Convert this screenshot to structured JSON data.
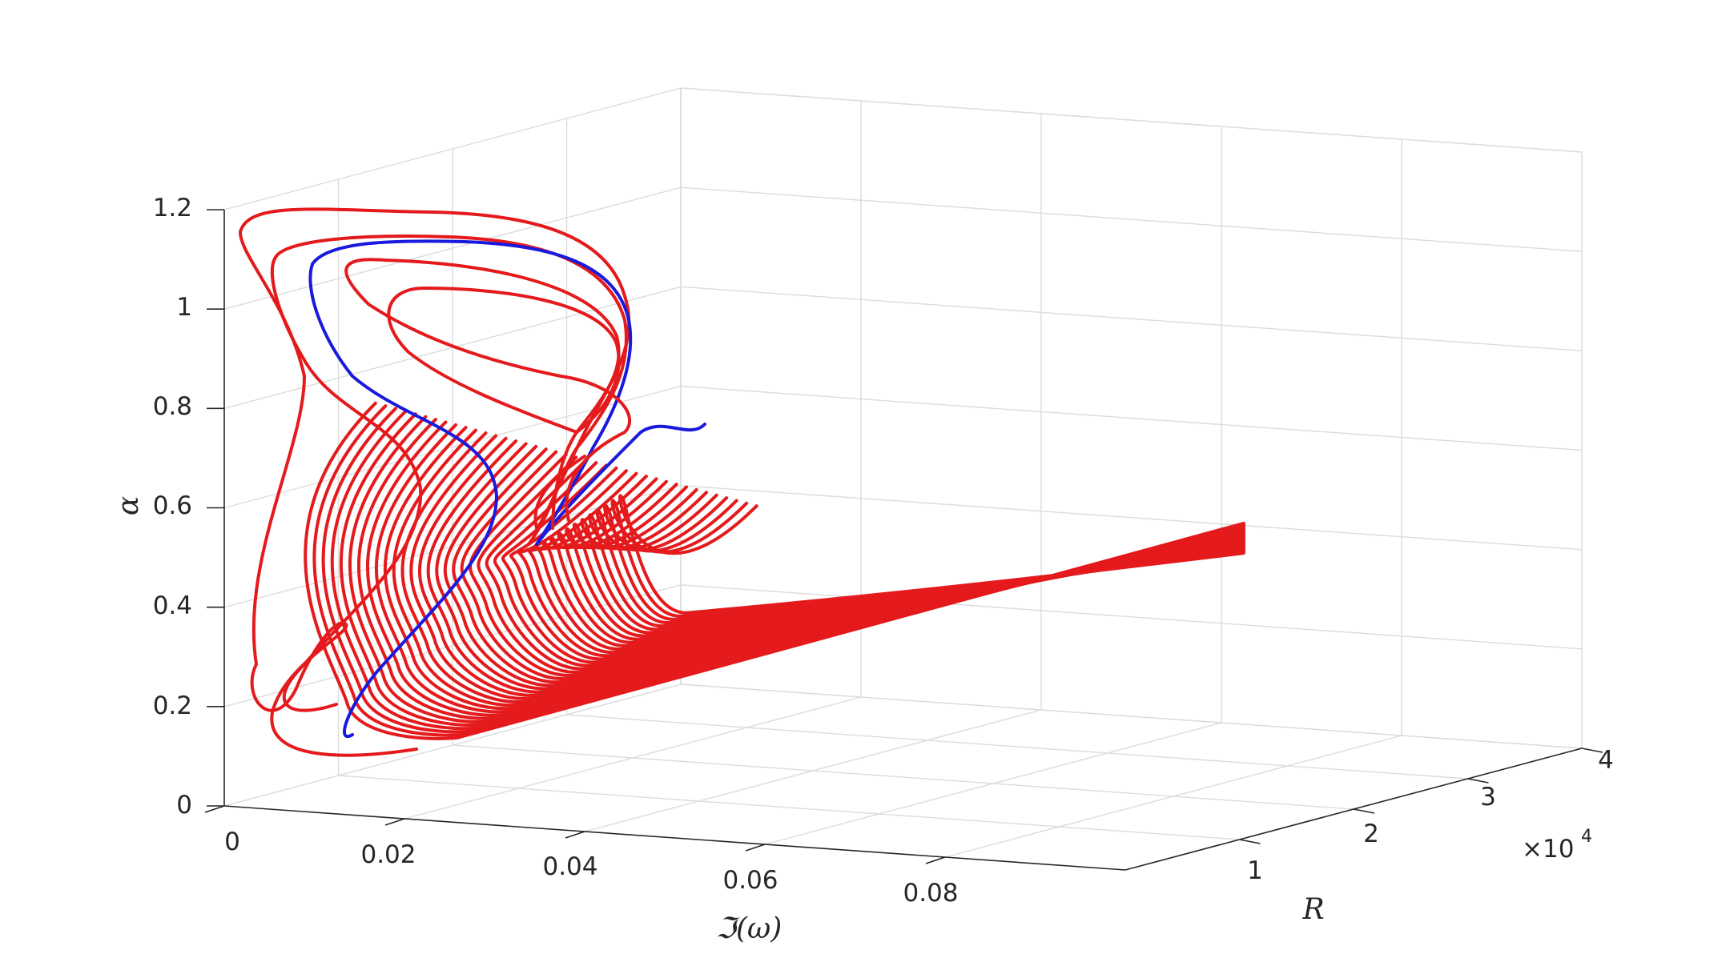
{
  "chart_data": {
    "type": "line",
    "title": "",
    "xlabel": "ℑ(ω)",
    "ylabel": "R",
    "zlabel": "α",
    "x_ticks": [
      "0",
      "0.02",
      "0.04",
      "0.06",
      "0.08"
    ],
    "y_ticks": [
      "1",
      "2",
      "3",
      "4"
    ],
    "y_exponent_label": "×10",
    "y_exponent_power": "4",
    "z_ticks": [
      "0",
      "0.2",
      "0.4",
      "0.6",
      "0.8",
      "1",
      "1.2"
    ],
    "xlim": [
      0,
      0.1
    ],
    "ylim": [
      0,
      40000
    ],
    "zlim": [
      0,
      1.2
    ],
    "grid": true,
    "view": "3d",
    "colors": {
      "closed_curves": "#e41a1c",
      "marginal_curve": "#1a1adc",
      "open_curves": "#e41a1c"
    },
    "closed_curves": [
      {
        "R": 5000,
        "alpha_max": 1.19,
        "alpha_min": 0.1,
        "imag_omega_max": 0.033
      },
      {
        "R": 5500,
        "alpha_max": 1.16,
        "alpha_min": 0.12,
        "imag_omega_max": 0.031
      },
      {
        "R": 6000,
        "alpha_max": 1.13,
        "alpha_min": 0.14,
        "imag_omega_max": 0.03
      },
      {
        "R": 6500,
        "alpha_max": 1.09,
        "alpha_min": 0.53,
        "imag_omega_max": 0.028
      },
      {
        "R": 7000,
        "alpha_max": 1.04,
        "alpha_min": 0.75,
        "imag_omega_max": 0.026
      }
    ],
    "marginal_curve": {
      "R": 6000,
      "alpha_max": 1.13,
      "alpha_min": 0.14
    },
    "open_curves": {
      "R_start": 6000,
      "R_end": 40000,
      "count": 39,
      "alpha_top": 0.76,
      "alpha_bottom": 0.14
    }
  }
}
